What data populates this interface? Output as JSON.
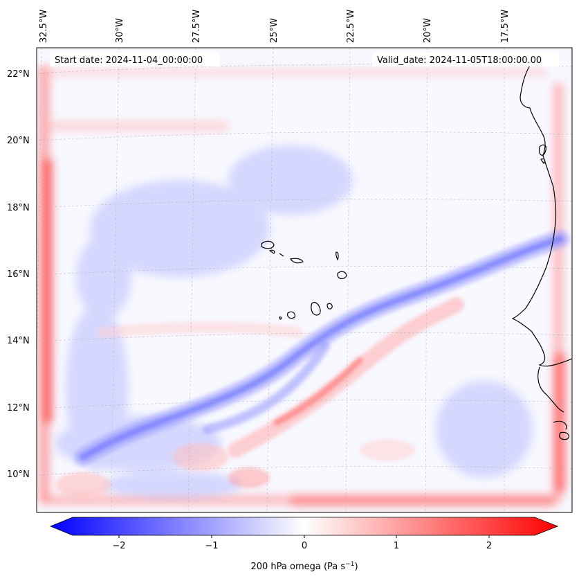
{
  "map": {
    "start_date": "Start date: 2024-11-04_00:00:00",
    "valid_date": "Valid_date: 2024-11-05T18:00:00.00",
    "longitude_labels": [
      "32.5°W",
      "30°W",
      "27.5°W",
      "25°W",
      "22.5°W",
      "20°W",
      "17.5°W"
    ],
    "latitude_labels": [
      "22°N",
      "20°N",
      "18°N",
      "16°N",
      "14°N",
      "12°N",
      "10°N"
    ],
    "colorbar": {
      "label_text": "200 hPa omega (Pa s",
      "label_exp": "−1",
      "label_close": ")",
      "ticks": [
        "−2",
        "−1",
        "0",
        "1",
        "2"
      ],
      "min": -2.75,
      "max": 2.75,
      "colormap": "bwr",
      "colors": {
        "negative": "#0000ff",
        "zero": "#ffffff",
        "positive": "#ff0000"
      }
    },
    "colors": {
      "coastline": "#000000",
      "gridline": "#b0b0b0",
      "background": "#f8f8ff"
    }
  }
}
